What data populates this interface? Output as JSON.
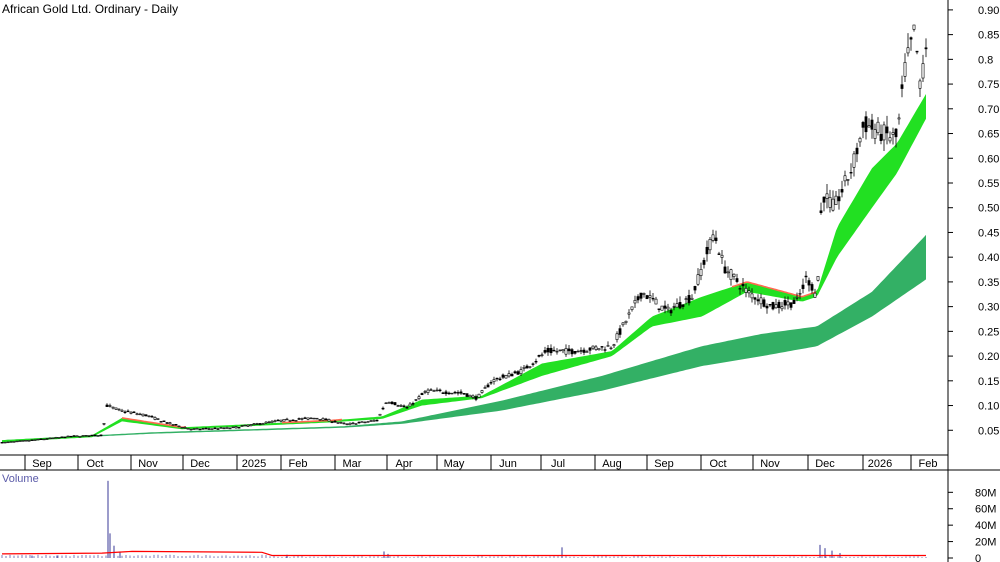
{
  "chart_data": {
    "type": "candlestick",
    "title": "African Gold Ltd. Ordinary - Daily",
    "xlabel": "",
    "ylabel": "",
    "ylim": [
      0,
      0.92
    ],
    "y_ticks": [
      "0.90",
      "0.85",
      "0.8",
      "0.75",
      "0.70",
      "0.65",
      "0.60",
      "0.55",
      "0.50",
      "0.45",
      "0.40",
      "0.35",
      "0.30",
      "0.25",
      "0.20",
      "0.15",
      "0.10",
      "0.05"
    ],
    "y_tick_values": [
      0.9,
      0.85,
      0.8,
      0.75,
      0.7,
      0.65,
      0.6,
      0.55,
      0.5,
      0.45,
      0.4,
      0.35,
      0.3,
      0.25,
      0.2,
      0.15,
      0.1,
      0.05
    ],
    "x_ticks": [
      "Sep",
      "Oct",
      "Nov",
      "Dec",
      "2025",
      "Feb",
      "Mar",
      "Apr",
      "May",
      "Jun",
      "Jul",
      "Aug",
      "Sep",
      "Oct",
      "Nov",
      "Dec",
      "2026",
      "Feb"
    ],
    "price_series": [
      {
        "t": 0,
        "v": 0.025
      },
      {
        "t": 30,
        "v": 0.03
      },
      {
        "t": 70,
        "v": 0.038
      },
      {
        "t": 100,
        "v": 0.04
      },
      {
        "t": 105,
        "v": 0.1
      },
      {
        "t": 118,
        "v": 0.09
      },
      {
        "t": 145,
        "v": 0.08
      },
      {
        "t": 165,
        "v": 0.065
      },
      {
        "t": 190,
        "v": 0.052
      },
      {
        "t": 230,
        "v": 0.055
      },
      {
        "t": 280,
        "v": 0.07
      },
      {
        "t": 315,
        "v": 0.075
      },
      {
        "t": 345,
        "v": 0.062
      },
      {
        "t": 375,
        "v": 0.07
      },
      {
        "t": 385,
        "v": 0.11
      },
      {
        "t": 405,
        "v": 0.095
      },
      {
        "t": 425,
        "v": 0.13
      },
      {
        "t": 460,
        "v": 0.125
      },
      {
        "t": 475,
        "v": 0.115
      },
      {
        "t": 490,
        "v": 0.15
      },
      {
        "t": 520,
        "v": 0.17
      },
      {
        "t": 545,
        "v": 0.21
      },
      {
        "t": 570,
        "v": 0.21
      },
      {
        "t": 610,
        "v": 0.22
      },
      {
        "t": 640,
        "v": 0.33
      },
      {
        "t": 665,
        "v": 0.29
      },
      {
        "t": 690,
        "v": 0.32
      },
      {
        "t": 712,
        "v": 0.45
      },
      {
        "t": 722,
        "v": 0.38
      },
      {
        "t": 745,
        "v": 0.33
      },
      {
        "t": 770,
        "v": 0.3
      },
      {
        "t": 795,
        "v": 0.31
      },
      {
        "t": 805,
        "v": 0.36
      },
      {
        "t": 815,
        "v": 0.32
      },
      {
        "t": 820,
        "v": 0.53
      },
      {
        "t": 832,
        "v": 0.5
      },
      {
        "t": 850,
        "v": 0.58
      },
      {
        "t": 862,
        "v": 0.67
      },
      {
        "t": 880,
        "v": 0.65
      },
      {
        "t": 895,
        "v": 0.64
      },
      {
        "t": 903,
        "v": 0.78
      },
      {
        "t": 913,
        "v": 0.86
      },
      {
        "t": 918,
        "v": 0.74
      },
      {
        "t": 924,
        "v": 0.83
      }
    ],
    "short_ribbon": [
      {
        "t": 0,
        "lo": 0.026,
        "hi": 0.03
      },
      {
        "t": 90,
        "lo": 0.036,
        "hi": 0.04
      },
      {
        "t": 120,
        "lo": 0.068,
        "hi": 0.075
      },
      {
        "t": 180,
        "lo": 0.052,
        "hi": 0.056
      },
      {
        "t": 330,
        "lo": 0.066,
        "hi": 0.07
      },
      {
        "t": 380,
        "lo": 0.073,
        "hi": 0.078
      },
      {
        "t": 420,
        "lo": 0.1,
        "hi": 0.112
      },
      {
        "t": 480,
        "lo": 0.115,
        "hi": 0.12
      },
      {
        "t": 540,
        "lo": 0.16,
        "hi": 0.185
      },
      {
        "t": 610,
        "lo": 0.2,
        "hi": 0.21
      },
      {
        "t": 650,
        "lo": 0.26,
        "hi": 0.28
      },
      {
        "t": 700,
        "lo": 0.28,
        "hi": 0.32
      },
      {
        "t": 745,
        "lo": 0.33,
        "hi": 0.35
      },
      {
        "t": 800,
        "lo": 0.31,
        "hi": 0.32
      },
      {
        "t": 815,
        "lo": 0.32,
        "hi": 0.33
      },
      {
        "t": 835,
        "lo": 0.4,
        "hi": 0.46
      },
      {
        "t": 870,
        "lo": 0.5,
        "hi": 0.58
      },
      {
        "t": 895,
        "lo": 0.57,
        "hi": 0.63
      },
      {
        "t": 924,
        "lo": 0.68,
        "hi": 0.73
      }
    ],
    "long_ribbon": [
      {
        "t": 0,
        "lo": 0.028,
        "hi": 0.03
      },
      {
        "t": 150,
        "lo": 0.043,
        "hi": 0.046
      },
      {
        "t": 340,
        "lo": 0.055,
        "hi": 0.058
      },
      {
        "t": 400,
        "lo": 0.063,
        "hi": 0.068
      },
      {
        "t": 500,
        "lo": 0.09,
        "hi": 0.11
      },
      {
        "t": 600,
        "lo": 0.13,
        "hi": 0.16
      },
      {
        "t": 700,
        "lo": 0.18,
        "hi": 0.22
      },
      {
        "t": 760,
        "lo": 0.2,
        "hi": 0.245
      },
      {
        "t": 815,
        "lo": 0.22,
        "hi": 0.26
      },
      {
        "t": 870,
        "lo": 0.28,
        "hi": 0.33
      },
      {
        "t": 924,
        "lo": 0.355,
        "hi": 0.445
      }
    ],
    "volume": {
      "title": "Volume",
      "y_ticks": [
        "80M",
        "60M",
        "40M",
        "20M",
        "0"
      ],
      "y_tick_values": [
        80,
        60,
        40,
        20,
        0
      ],
      "ylim": [
        0,
        95
      ],
      "spikes": [
        {
          "t": 106,
          "v": 94
        },
        {
          "t": 108,
          "v": 30
        },
        {
          "t": 112,
          "v": 15
        },
        {
          "t": 118,
          "v": 8
        },
        {
          "t": 30,
          "v": 3
        },
        {
          "t": 55,
          "v": 3
        },
        {
          "t": 285,
          "v": 4
        },
        {
          "t": 382,
          "v": 8
        },
        {
          "t": 386,
          "v": 5
        },
        {
          "t": 560,
          "v": 13
        },
        {
          "t": 818,
          "v": 16
        },
        {
          "t": 823,
          "v": 12
        },
        {
          "t": 830,
          "v": 9
        },
        {
          "t": 838,
          "v": 6
        }
      ],
      "avg_line": [
        {
          "t": 0,
          "v": 5
        },
        {
          "t": 100,
          "v": 6
        },
        {
          "t": 130,
          "v": 8
        },
        {
          "t": 260,
          "v": 7
        },
        {
          "t": 270,
          "v": 3
        },
        {
          "t": 924,
          "v": 3
        }
      ]
    },
    "colors": {
      "short_ribbon": "#22e022",
      "short_ribbon_dark": "#1fb01f",
      "long_ribbon": "#33b065",
      "down_band": "#ff6a50",
      "candle": "#000000",
      "volume_bar": "#5a5aa8",
      "volume_avg": "#ff0000",
      "axis": "#000000"
    }
  }
}
